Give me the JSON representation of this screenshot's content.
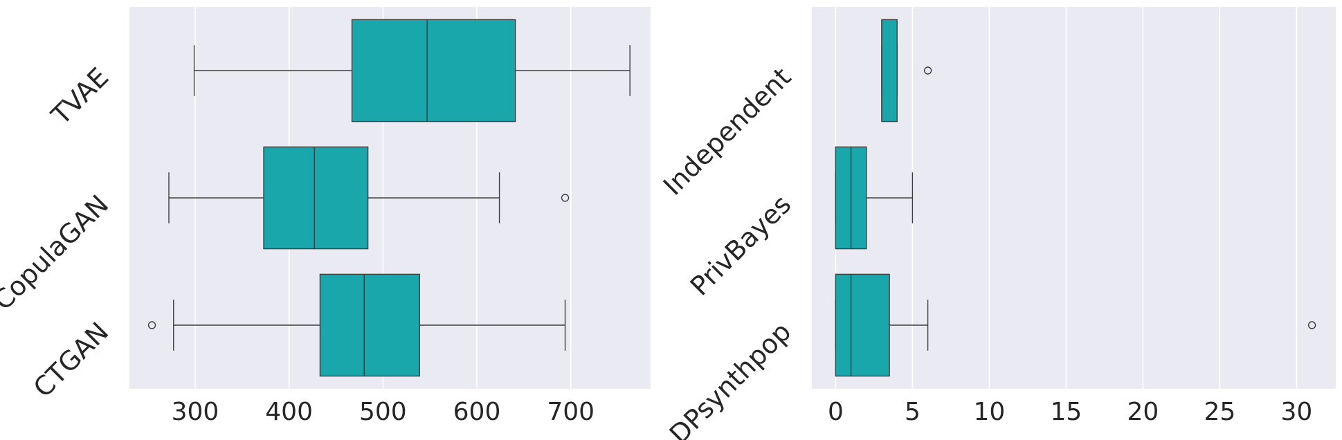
{
  "chart_data": [
    {
      "type": "boxplot",
      "orientation": "horizontal",
      "title": "",
      "xlabel": "",
      "ylabel": "",
      "xlim": [
        230,
        785
      ],
      "xticks": [
        300,
        400,
        500,
        600,
        700
      ],
      "xtick_labels": [
        "300",
        "400",
        "500",
        "600",
        "700"
      ],
      "grid": true,
      "box_color": "#19a7ab",
      "categories": [
        "TVAE",
        "CopulaGAN",
        "CTGAN"
      ],
      "boxes": [
        {
          "label": "TVAE",
          "whisker_low": 299,
          "q1": 467,
          "median": 547,
          "q3": 641,
          "whisker_high": 763,
          "fliers": []
        },
        {
          "label": "CopulaGAN",
          "whisker_low": 272,
          "q1": 373,
          "median": 427,
          "q3": 484,
          "whisker_high": 624,
          "fliers": [
            694
          ]
        },
        {
          "label": "CTGAN",
          "whisker_low": 277,
          "q1": 433,
          "median": 480,
          "q3": 539,
          "whisker_high": 694,
          "fliers": [
            254
          ]
        }
      ]
    },
    {
      "type": "boxplot",
      "orientation": "horizontal",
      "title": "",
      "xlabel": "",
      "ylabel": "",
      "xlim": [
        -1.55,
        32.55
      ],
      "xticks": [
        0,
        5,
        10,
        15,
        20,
        25,
        30
      ],
      "xtick_labels": [
        "0",
        "5",
        "10",
        "15",
        "20",
        "25",
        "30"
      ],
      "grid": true,
      "box_color": "#19a7ab",
      "categories": [
        "Independent",
        "PrivBayes",
        "DPsynthpop"
      ],
      "boxes": [
        {
          "label": "Independent",
          "whisker_low": 3,
          "q1": 3,
          "median": 3,
          "q3": 4,
          "whisker_high": 4,
          "fliers": [
            6
          ]
        },
        {
          "label": "PrivBayes",
          "whisker_low": 0,
          "q1": 0,
          "median": 1,
          "q3": 2,
          "whisker_high": 5,
          "fliers": []
        },
        {
          "label": "DPsynthpop",
          "whisker_low": 0,
          "q1": 0,
          "median": 1,
          "q3": 3.5,
          "whisker_high": 6,
          "fliers": [
            31
          ]
        }
      ]
    }
  ]
}
